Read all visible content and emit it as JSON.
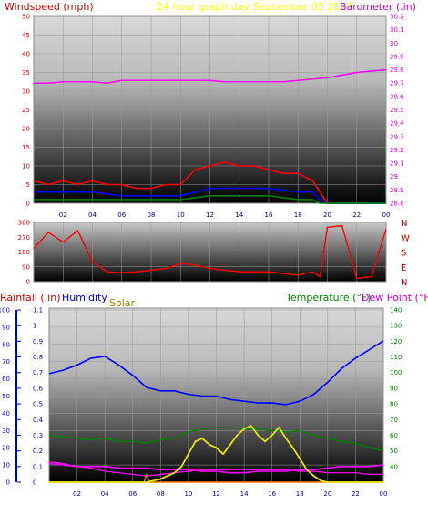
{
  "header": {
    "windspeed_label": "Windspeed (mph)",
    "title": "24 hour graph day   September 05 2025",
    "barometer_label": "Barometer (.in)"
  },
  "lower_header": {
    "rainfall_label": "Rainfall (.in)",
    "humidity_label": "Humidity",
    "solar_label": "Solar",
    "temperature_label": "Temperature (°F)",
    "dewpoint_label": "Dew Point (°F)"
  },
  "colors": {
    "wind_gust": "#ff0000",
    "wind_avg": "#0000ff",
    "wind_low": "#008000",
    "barometer": "#ff00ff",
    "direction": "#ff0000",
    "humidity": "#0000ff",
    "solar": "#e6e600",
    "temperature": "#008000",
    "dewpoint": "#ff00ff",
    "rainfall": "#ff8000",
    "header_red": "#cc0000",
    "header_yellow": "#ffff00",
    "header_magenta": "#cc00cc",
    "axis_text_left": "#cc0000",
    "axis_text_right": "#cc00cc",
    "axis_text_temp": "#008000",
    "axis_text_rain": "#0000cc",
    "axis_text_x": "#000080"
  },
  "chart_data": [
    {
      "type": "line",
      "x_tick_labels": [
        "02",
        "04",
        "06",
        "08",
        "10",
        "12",
        "14",
        "16",
        "18",
        "20",
        "22",
        "00"
      ],
      "grid": true,
      "left_axis": {
        "ylim": [
          0,
          50
        ],
        "tick_labels": [
          "0",
          "5",
          "10",
          "15",
          "20",
          "25",
          "30",
          "35",
          "40",
          "45",
          "50"
        ]
      },
      "right_axis": {
        "ylim": [
          28.8,
          30.2
        ],
        "tick_labels": [
          "28.8",
          "28.9",
          "29",
          "29.1",
          "29.2",
          "29.3",
          "29.4",
          "29.5",
          "29.6",
          "29.7",
          "29.8",
          "29.9",
          "30",
          "30.1",
          "30.2"
        ]
      },
      "series": [
        {
          "axis": "right",
          "hours": [
            0,
            1,
            2,
            3,
            4,
            5,
            6,
            7,
            8,
            9,
            10,
            11,
            12,
            13,
            14,
            15,
            16,
            17,
            18,
            19,
            20,
            21,
            22,
            23,
            24
          ],
          "values": [
            29.7,
            29.7,
            29.71,
            29.71,
            29.71,
            29.7,
            29.72,
            29.72,
            29.72,
            29.72,
            29.72,
            29.72,
            29.72,
            29.71,
            29.71,
            29.71,
            29.71,
            29.71,
            29.72,
            29.73,
            29.74,
            29.76,
            29.78,
            29.79,
            29.8
          ]
        },
        {
          "axis": "left",
          "hours": [
            0,
            1,
            2,
            3,
            4,
            5,
            6,
            7,
            8,
            9,
            10,
            11,
            12,
            13,
            14,
            15,
            16,
            17,
            18,
            19,
            19.5,
            20,
            24
          ],
          "values": [
            6,
            5,
            6,
            5,
            6,
            5,
            5,
            4,
            4,
            5,
            5,
            9,
            10,
            11,
            10,
            10,
            9,
            8,
            8,
            6,
            3,
            0,
            0
          ]
        },
        {
          "axis": "left",
          "hours": [
            0,
            2,
            4,
            6,
            8,
            10,
            12,
            14,
            16,
            18,
            19,
            19.5,
            20,
            24
          ],
          "values": [
            3,
            3,
            3,
            2,
            2,
            2,
            4,
            4,
            4,
            3,
            3,
            1,
            0,
            0
          ]
        },
        {
          "axis": "left",
          "hours": [
            0,
            2,
            4,
            6,
            8,
            10,
            12,
            14,
            16,
            18,
            19,
            19.5,
            20,
            24
          ],
          "values": [
            1,
            1,
            1,
            1,
            1,
            1,
            2,
            2,
            2,
            1,
            1,
            0,
            0,
            0
          ]
        }
      ]
    },
    {
      "type": "scatter",
      "x_tick_labels": [
        "02",
        "04",
        "06",
        "08",
        "10",
        "12",
        "14",
        "16",
        "18",
        "20",
        "22",
        "00"
      ],
      "left_axis": {
        "ylim": [
          0,
          360
        ],
        "tick_labels": [
          "0",
          "90",
          "180",
          "270",
          "360"
        ]
      },
      "direction_labels": [
        "N",
        "W",
        "S",
        "E",
        "N"
      ],
      "series": [
        {
          "hours": [
            0,
            1,
            2,
            3,
            4,
            5,
            6,
            7,
            8,
            9,
            10,
            11,
            12,
            13,
            14,
            15,
            16,
            17,
            18,
            19,
            19.5,
            20,
            21,
            22,
            23,
            24
          ],
          "values": [
            200,
            300,
            240,
            310,
            120,
            60,
            55,
            60,
            70,
            80,
            110,
            100,
            80,
            70,
            60,
            60,
            60,
            50,
            40,
            60,
            30,
            330,
            340,
            20,
            30,
            320
          ]
        }
      ]
    },
    {
      "type": "line",
      "x_tick_labels": [
        "02",
        "04",
        "06",
        "08",
        "10",
        "12",
        "14",
        "16",
        "18",
        "20",
        "22",
        "00"
      ],
      "grid": true,
      "left_axis_rain": {
        "ylim": [
          0,
          1.1
        ],
        "tick_labels": [
          "0",
          "0.1",
          "0.2",
          "0.3",
          "0.4",
          "0.5",
          "0.6",
          "0.7",
          "0.8",
          "0.9",
          "1",
          "1.1"
        ]
      },
      "left_axis_humidity": {
        "ylim": [
          0,
          100
        ],
        "tick_labels": [
          "0",
          "10",
          "20",
          "30",
          "40",
          "50",
          "60",
          "70",
          "80",
          "90",
          "100"
        ]
      },
      "right_axis_temp": {
        "ylim": [
          30,
          140
        ],
        "tick_labels": [
          "40",
          "50",
          "60",
          "70",
          "80",
          "90",
          "100",
          "110",
          "120",
          "130",
          "140"
        ]
      },
      "series": [
        {
          "axis": "humidity",
          "hours": [
            0,
            1,
            2,
            3,
            4,
            5,
            6,
            7,
            8,
            9,
            10,
            11,
            12,
            13,
            14,
            15,
            16,
            17,
            18,
            19,
            20,
            21,
            22,
            23,
            24
          ],
          "values": [
            63,
            65,
            68,
            72,
            73,
            68,
            62,
            55,
            53,
            53,
            51,
            50,
            50,
            48,
            47,
            46,
            46,
            45,
            47,
            51,
            58,
            66,
            72,
            77,
            82
          ]
        },
        {
          "axis": "temp",
          "hours": [
            0,
            1,
            2,
            3,
            4,
            5,
            6,
            7,
            8,
            9,
            10,
            11,
            12,
            13,
            14,
            15,
            16,
            17,
            18,
            19,
            20,
            21,
            22,
            23,
            24
          ],
          "values": [
            60,
            59,
            58,
            57,
            58,
            56,
            56,
            55,
            57,
            58,
            62,
            64,
            65,
            65,
            64,
            64,
            63,
            62,
            63,
            60,
            58,
            56,
            55,
            52,
            50
          ]
        },
        {
          "axis": "temp",
          "hours": [
            0,
            1,
            2,
            3,
            4,
            5,
            6,
            7,
            8,
            9,
            10,
            11,
            12,
            13,
            14,
            15,
            16,
            17,
            18,
            19,
            20,
            21,
            22,
            23,
            24
          ],
          "values": [
            42,
            41,
            40,
            40,
            40,
            39,
            39,
            39,
            38,
            38,
            38,
            37,
            37,
            36,
            36,
            37,
            37,
            37,
            38,
            38,
            39,
            40,
            40,
            40,
            41
          ]
        },
        {
          "axis": "rain",
          "hours": [
            0,
            1,
            2,
            3,
            4,
            5,
            6,
            7,
            8,
            9,
            10,
            11,
            12,
            13,
            14,
            15,
            16,
            17,
            18,
            19,
            20,
            21,
            22,
            23,
            24
          ],
          "values": [
            0.13,
            0.12,
            0.1,
            0.09,
            0.07,
            0.06,
            0.05,
            0.04,
            0.05,
            0.06,
            0.07,
            0.08,
            0.08,
            0.08,
            0.08,
            0.08,
            0.08,
            0.08,
            0.07,
            0.07,
            0.06,
            0.06,
            0.06,
            0.05,
            0.05
          ]
        },
        {
          "axis": "rain",
          "hours": [
            0,
            6.8,
            7,
            7.2,
            24
          ],
          "values": [
            0,
            0,
            0.05,
            0,
            0
          ]
        },
        {
          "axis": "rain",
          "hours": [
            0,
            7,
            7.5,
            8,
            8.5,
            9,
            9.5,
            10,
            10.5,
            11,
            11.5,
            12,
            12.5,
            13,
            13.5,
            14,
            14.5,
            15,
            15.5,
            16,
            16.5,
            17,
            17.5,
            18,
            18.5,
            19,
            19.5,
            20,
            24
          ],
          "values": [
            0,
            0,
            0.01,
            0.02,
            0.04,
            0.06,
            0.1,
            0.18,
            0.26,
            0.28,
            0.24,
            0.22,
            0.18,
            0.24,
            0.3,
            0.34,
            0.36,
            0.3,
            0.26,
            0.3,
            0.35,
            0.28,
            0.22,
            0.15,
            0.08,
            0.04,
            0.01,
            0,
            0
          ]
        }
      ]
    }
  ]
}
